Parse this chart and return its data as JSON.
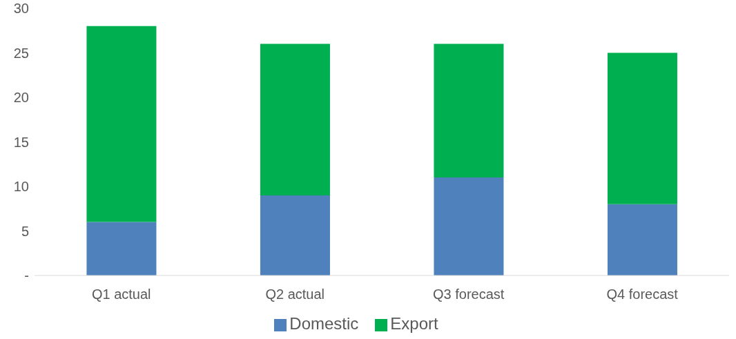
{
  "chart_data": {
    "type": "bar",
    "stacked": true,
    "categories": [
      "Q1 actual",
      "Q2 actual",
      "Q3 forecast",
      "Q4 forecast"
    ],
    "series": [
      {
        "name": "Domestic",
        "color": "#4f81bd",
        "values": [
          6,
          9,
          11,
          8
        ]
      },
      {
        "name": "Export",
        "color": "#00b050",
        "values": [
          22,
          17,
          15,
          17
        ]
      }
    ],
    "ylim": [
      0,
      30
    ],
    "yticks": [
      {
        "value": 0,
        "label": "-"
      },
      5,
      10,
      15,
      20,
      25,
      30
    ],
    "legend": "bottom"
  }
}
